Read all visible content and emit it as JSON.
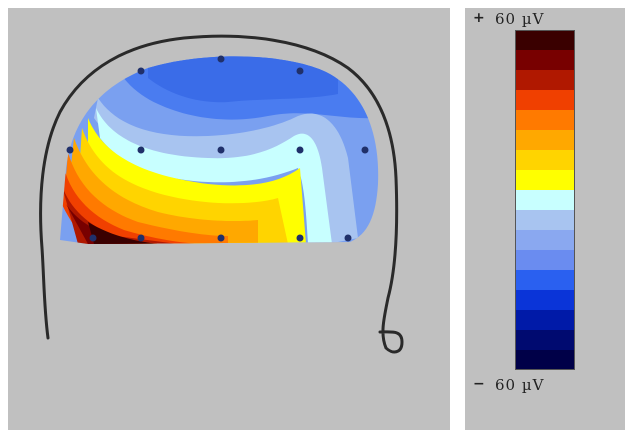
{
  "scale": {
    "max_sign": "+",
    "max_label": "60 µV",
    "min_sign": "−",
    "min_label": "60 µV",
    "colors": [
      "#3a0000",
      "#780000",
      "#b01800",
      "#f04000",
      "#ff7a00",
      "#ffa800",
      "#ffd400",
      "#ffff00",
      "#c8ffff",
      "#a8c4f0",
      "#8aa8f0",
      "#6a8cf0",
      "#2a60f0",
      "#0a34d8",
      "#001aa8",
      "#000a70",
      "#000048"
    ]
  }
}
